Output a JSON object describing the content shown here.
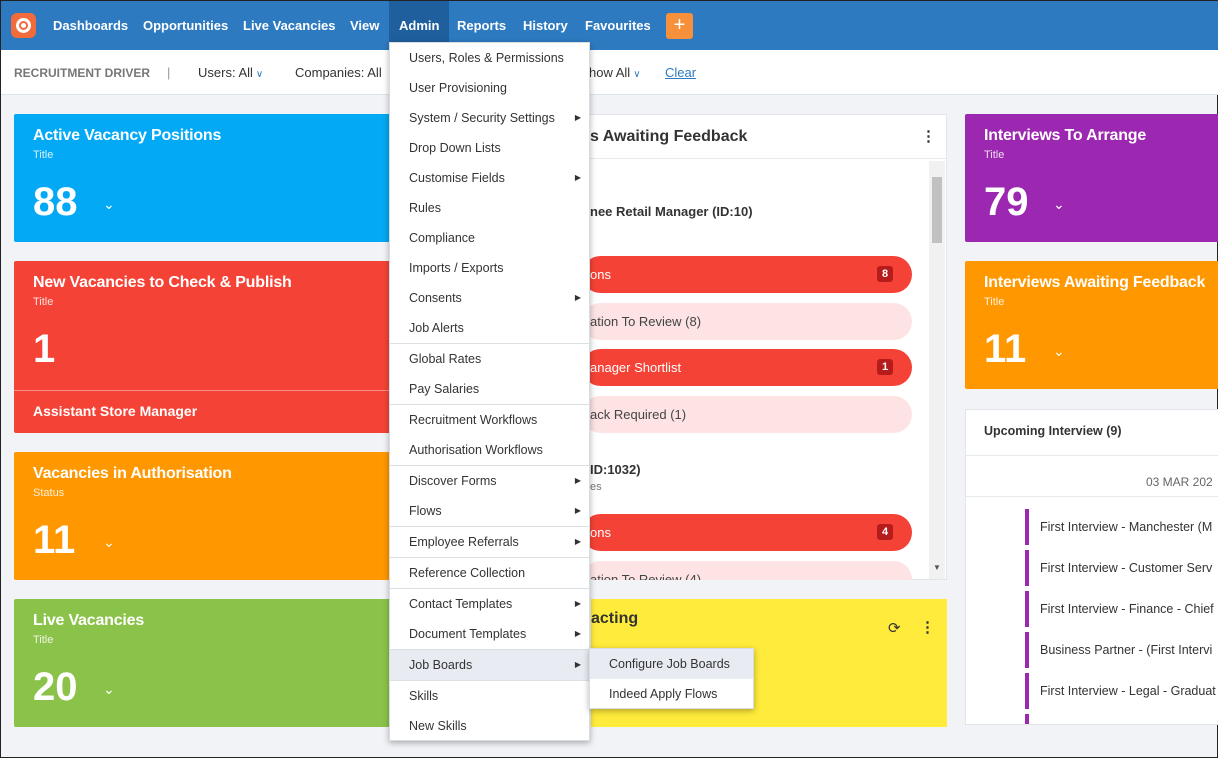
{
  "nav": {
    "items": [
      "Dashboards",
      "Opportunities",
      "Live Vacancies",
      "View",
      "Admin",
      "Reports",
      "History",
      "Favourites"
    ],
    "plus": "+"
  },
  "filters": {
    "title": "RECRUITMENT DRIVER",
    "sep": "|",
    "users": "Users: All",
    "companies": "Companies: All",
    "show": "how All",
    "clear": "Clear"
  },
  "tiles": {
    "active": {
      "title": "Active Vacancy Positions",
      "sub": "Title",
      "value": "88"
    },
    "new_vacancies": {
      "title": "New Vacancies to Check & Publish",
      "sub": "Title",
      "value": "1",
      "footer": "Assistant Store Manager"
    },
    "authorisation": {
      "title": "Vacancies in Authorisation",
      "sub": "Status",
      "value": "11"
    },
    "live": {
      "title": "Live Vacancies",
      "sub": "Title",
      "value": "20"
    },
    "arrange": {
      "title": "Interviews To Arrange",
      "sub": "Title",
      "value": "79"
    },
    "awaiting": {
      "title": "Interviews Awaiting Feedback",
      "sub": "Title",
      "value": "11"
    }
  },
  "feedback_panel": {
    "title": "s Awaiting Feedback",
    "job1": "nee Retail Manager (ID:10)",
    "pills": [
      {
        "label": "ons",
        "badge": "8"
      },
      {
        "label": "ation To Review (8)",
        "badge": ""
      },
      {
        "label": "anager Shortlist",
        "badge": "1"
      },
      {
        "label": "ack Required (1)",
        "badge": ""
      }
    ],
    "job2": "ID:1032)",
    "job2_sub": "es",
    "pills2": [
      {
        "label": "ons",
        "badge": "4"
      },
      {
        "label": "ation To Review (4)",
        "badge": ""
      }
    ]
  },
  "yellow_panel": {
    "title": "acting"
  },
  "upcoming": {
    "title": "Upcoming Interview (9)",
    "date": "03 MAR 202",
    "rows": [
      "First Interview - Manchester (M",
      "First Interview - Customer Serv",
      "First Interview - Finance - Chief",
      "Business Partner - (First Intervi",
      "First Interview - Legal - Graduat"
    ]
  },
  "admin_menu": {
    "items": [
      "Users, Roles & Permissions",
      "User Provisioning",
      "System / Security Settings",
      "Drop Down Lists",
      "Customise Fields",
      "Rules",
      "Compliance",
      "Imports / Exports",
      "Consents",
      "Job Alerts",
      "Global Rates",
      "Pay Salaries",
      "Recruitment Workflows",
      "Authorisation Workflows",
      "Discover Forms",
      "Flows",
      "Employee Referrals",
      "Reference Collection",
      "Contact Templates",
      "Document Templates",
      "Job Boards",
      "Skills",
      "New Skills"
    ],
    "submenu": [
      "Configure Job Boards",
      "Indeed Apply Flows"
    ]
  },
  "colors": {
    "nav": "#2e7ac0",
    "blue": "#03a9f4",
    "red": "#f44336",
    "orange": "#ff9800",
    "green": "#8bc34a",
    "purple": "#9c27b0",
    "yellow": "#ffeb3b"
  }
}
